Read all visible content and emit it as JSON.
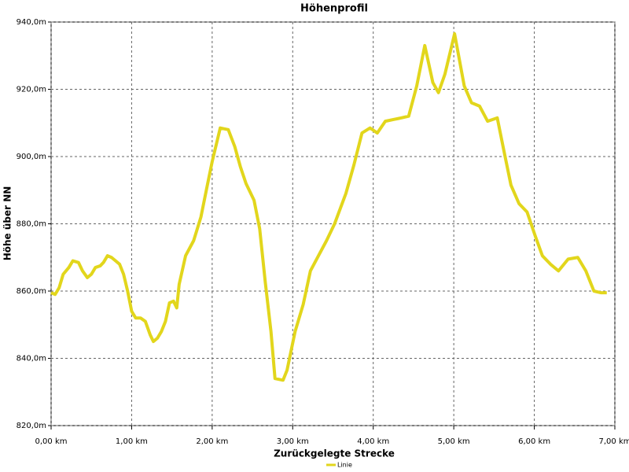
{
  "chart_data": {
    "type": "line",
    "title": "Höhenprofil",
    "x_label": "Zurückgelegte Strecke",
    "y_label": "Höhe über NN",
    "xlim": [
      0,
      7
    ],
    "ylim": [
      820,
      940
    ],
    "xticks": [
      {
        "value": 0,
        "label": "0,00 km"
      },
      {
        "value": 1,
        "label": "1,00 km"
      },
      {
        "value": 2,
        "label": "2,00 km"
      },
      {
        "value": 3,
        "label": "3,00 km"
      },
      {
        "value": 4,
        "label": "4,00 km"
      },
      {
        "value": 5,
        "label": "5,00 km"
      },
      {
        "value": 6,
        "label": "6,00 km"
      },
      {
        "value": 7,
        "label": "7,00 km"
      }
    ],
    "yticks": [
      {
        "value": 820,
        "label": "820,0m"
      },
      {
        "value": 840,
        "label": "840,0m"
      },
      {
        "value": 860,
        "label": "860,0m"
      },
      {
        "value": 880,
        "label": "880,0m"
      },
      {
        "value": 900,
        "label": "900,0m"
      },
      {
        "value": 920,
        "label": "920,0m"
      },
      {
        "value": 940,
        "label": "940,0m"
      }
    ],
    "grid": true,
    "legend": "bottom",
    "x": [
      0,
      0.05,
      0.1,
      0.15,
      0.22,
      0.27,
      0.34,
      0.39,
      0.45,
      0.5,
      0.55,
      0.61,
      0.65,
      0.7,
      0.75,
      0.8,
      0.85,
      0.9,
      0.95,
      1.0,
      1.05,
      1.11,
      1.17,
      1.23,
      1.27,
      1.32,
      1.37,
      1.42,
      1.47,
      1.52,
      1.56,
      1.59,
      1.67,
      1.77,
      1.86,
      1.94,
      2.0,
      2.1,
      2.2,
      2.28,
      2.35,
      2.42,
      2.52,
      2.59,
      2.66,
      2.73,
      2.78,
      2.88,
      2.93,
      3.03,
      3.13,
      3.22,
      3.32,
      3.42,
      3.52,
      3.66,
      3.76,
      3.86,
      3.96,
      4.05,
      4.15,
      4.25,
      4.35,
      4.44,
      4.54,
      4.64,
      4.74,
      4.81,
      4.89,
      5.01,
      5.13,
      5.22,
      5.32,
      5.42,
      5.54,
      5.62,
      5.71,
      5.81,
      5.91,
      6.01,
      6.1,
      6.2,
      6.3,
      6.42,
      6.54,
      6.64,
      6.74,
      6.83,
      6.9
    ],
    "series": [
      {
        "name": "Linie",
        "color": "#e2d61c",
        "values": [
          859.5,
          859,
          861,
          865,
          867,
          869,
          868.5,
          866,
          864,
          865,
          867,
          867.5,
          868.5,
          870.5,
          870,
          869,
          868,
          865,
          860,
          854,
          852,
          852,
          851,
          847,
          845,
          846,
          848,
          851,
          856.5,
          857,
          855,
          862,
          870.5,
          875,
          882,
          891.5,
          898.5,
          908.5,
          908,
          903,
          897,
          892,
          887,
          878.5,
          862.5,
          848,
          834,
          833.5,
          836.5,
          848,
          856,
          866,
          870.5,
          875,
          880,
          889,
          897.5,
          907,
          908.5,
          907,
          910.5,
          911,
          911.5,
          912,
          921,
          933,
          922,
          919,
          924.5,
          936.5,
          921,
          916,
          915,
          910.5,
          911.5,
          902,
          891.5,
          886,
          883.5,
          876.5,
          870.5,
          868,
          866,
          869.5,
          870,
          866,
          860,
          859.5,
          859.5
        ]
      }
    ]
  }
}
